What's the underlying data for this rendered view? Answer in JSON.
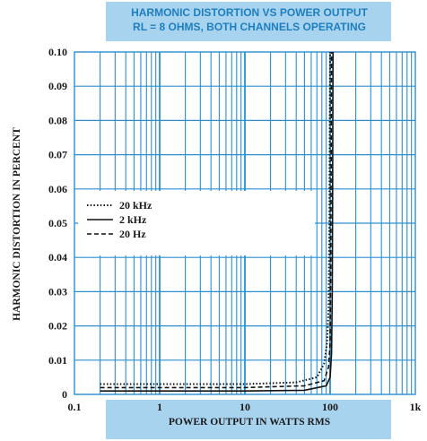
{
  "chart_data": {
    "type": "line",
    "title": "HARMONIC DISTORTION VS POWER OUTPUT",
    "subtitle": "RL = 8 OHMS, BOTH CHANNELS OPERATING",
    "xlabel": "POWER OUTPUT IN WATTS RMS",
    "ylabel": "HARMONIC DISTORTION IN PERCENT",
    "x_scale": "log",
    "xlim": [
      0.1,
      1000
    ],
    "ylim": [
      0,
      0.1
    ],
    "x_ticks": [
      "0.1",
      "1",
      "10",
      "100",
      "1k"
    ],
    "y_ticks": [
      "0",
      "0.01",
      "0.02",
      "0.03",
      "0.04",
      "0.05",
      "0.06",
      "0.07",
      "0.08",
      "0.09",
      "0.10"
    ],
    "grid": true,
    "legend_position": "left-middle",
    "series": [
      {
        "name": "20 kHz",
        "style": "dotted",
        "points": [
          [
            0.2,
            0.003
          ],
          [
            1,
            0.003
          ],
          [
            10,
            0.003
          ],
          [
            40,
            0.0035
          ],
          [
            70,
            0.005
          ],
          [
            85,
            0.009
          ],
          [
            92,
            0.015
          ],
          [
            96,
            0.025
          ],
          [
            98,
            0.05
          ],
          [
            99,
            0.08
          ],
          [
            100,
            0.1
          ]
        ]
      },
      {
        "name": "2 kHz",
        "style": "solid",
        "points": [
          [
            0.2,
            0.001
          ],
          [
            1,
            0.001
          ],
          [
            10,
            0.001
          ],
          [
            50,
            0.0012
          ],
          [
            90,
            0.0025
          ],
          [
            100,
            0.005
          ],
          [
            104,
            0.012
          ],
          [
            106,
            0.03
          ],
          [
            107,
            0.06
          ],
          [
            108,
            0.1
          ]
        ]
      },
      {
        "name": "20 Hz",
        "style": "dashed",
        "points": [
          [
            0.2,
            0.002
          ],
          [
            1,
            0.002
          ],
          [
            10,
            0.002
          ],
          [
            50,
            0.0025
          ],
          [
            85,
            0.004
          ],
          [
            96,
            0.008
          ],
          [
            100,
            0.015
          ],
          [
            102,
            0.04
          ],
          [
            103,
            0.07
          ],
          [
            104,
            0.1
          ]
        ]
      }
    ]
  },
  "colors": {
    "grid_blue": "#2b8fd0",
    "band_blue": "#a8d3ef",
    "title_blue": "#1d7fbf",
    "line_black": "#111111"
  }
}
